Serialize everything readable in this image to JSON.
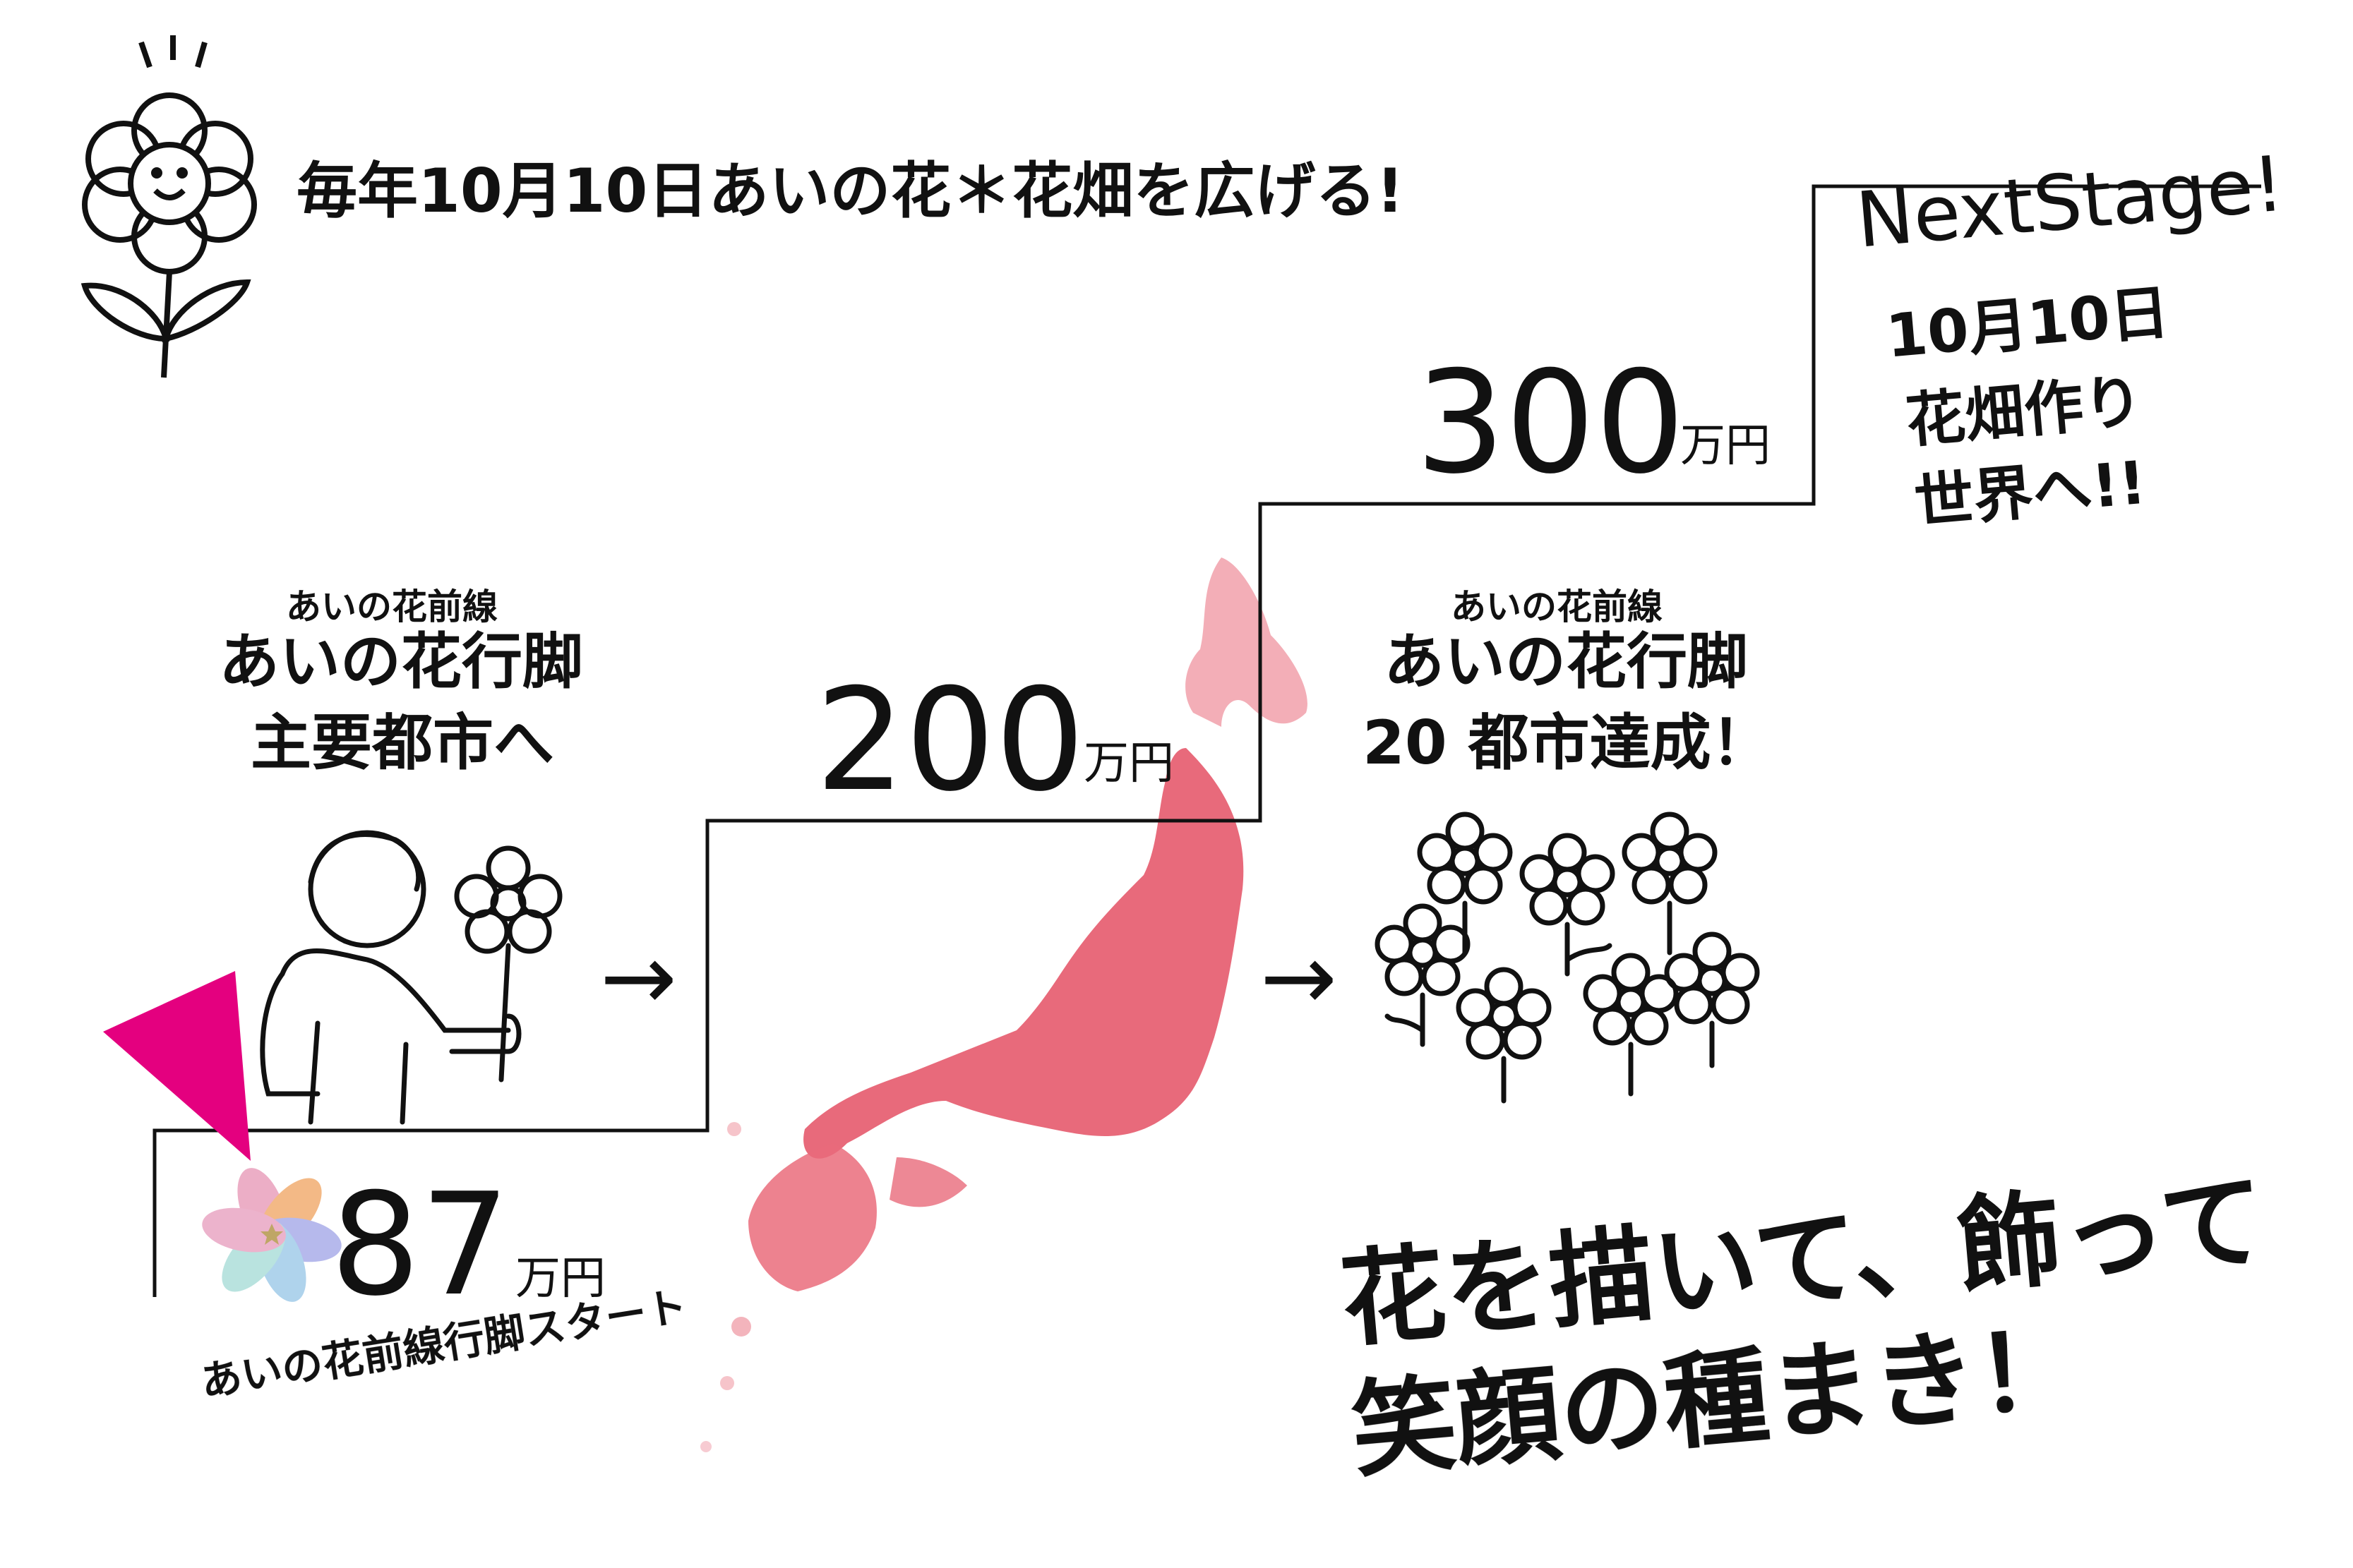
{
  "headline": "毎年10月10日あいの花＊花畑を広げる!",
  "colors": {
    "accent_magenta": "#e4007f",
    "map_pink": "#e65a6c",
    "line": "#111111"
  },
  "steps": [
    {
      "amount": "87",
      "unit": "万円",
      "caption": "あいの花前線行脚スタート"
    },
    {
      "amount": "200",
      "unit": "万円"
    },
    {
      "amount": "300",
      "unit": "万円"
    }
  ],
  "left_block": {
    "small": "あいの花前線",
    "line1": "あいの花行脚",
    "line2": "主要都市へ"
  },
  "right_block": {
    "small": "あいの花前線",
    "line1": "あいの花行脚",
    "line2": "20 都市達成！"
  },
  "next_stage": {
    "title": "NextStage!",
    "lines": [
      "10月10日",
      "花畑作り",
      "世界へ!!"
    ]
  },
  "slogan": {
    "line1": "花を描いて、飾って",
    "line2": "笑顔の種まき！"
  },
  "arrows": [
    "→",
    "→"
  ],
  "icons": [
    "smiling-flower-icon",
    "person-with-flower-icon",
    "flower-field-icon",
    "japan-map",
    "watercolor-flower-icon",
    "triangle-pointer"
  ]
}
